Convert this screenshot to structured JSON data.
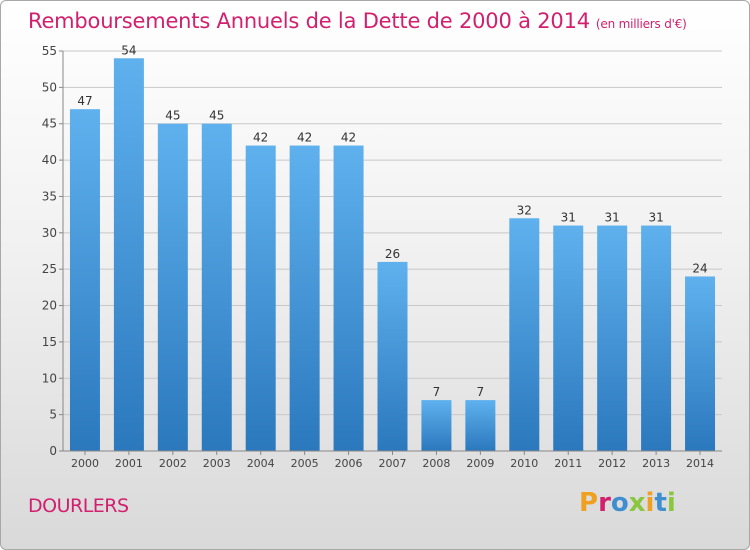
{
  "chart_data": {
    "type": "bar",
    "title": "Remboursements Annuels de la Dette de 2000 à 2014",
    "subtitle": "(en milliers d'€)",
    "categories": [
      "2000",
      "2001",
      "2002",
      "2003",
      "2004",
      "2005",
      "2006",
      "2007",
      "2008",
      "2009",
      "2010",
      "2011",
      "2012",
      "2013",
      "2014"
    ],
    "values": [
      47,
      54,
      45,
      45,
      42,
      42,
      42,
      26,
      7,
      7,
      32,
      31,
      31,
      31,
      24
    ],
    "ylim": [
      0,
      55
    ],
    "yticks": [
      0,
      5,
      10,
      15,
      20,
      25,
      30,
      35,
      40,
      45,
      50,
      55
    ],
    "grid": true,
    "bar_color": "#3d8fd6"
  },
  "footer": {
    "town": "DOURLERS",
    "logo": "Proxiti"
  },
  "colors": {
    "title": "#d21f6e",
    "logo_letters": [
      "#f0a020",
      "#d21f6e",
      "#3f8fd0",
      "#8cc63f",
      "#f0a020",
      "#3f8fd0",
      "#8cc63f"
    ]
  }
}
